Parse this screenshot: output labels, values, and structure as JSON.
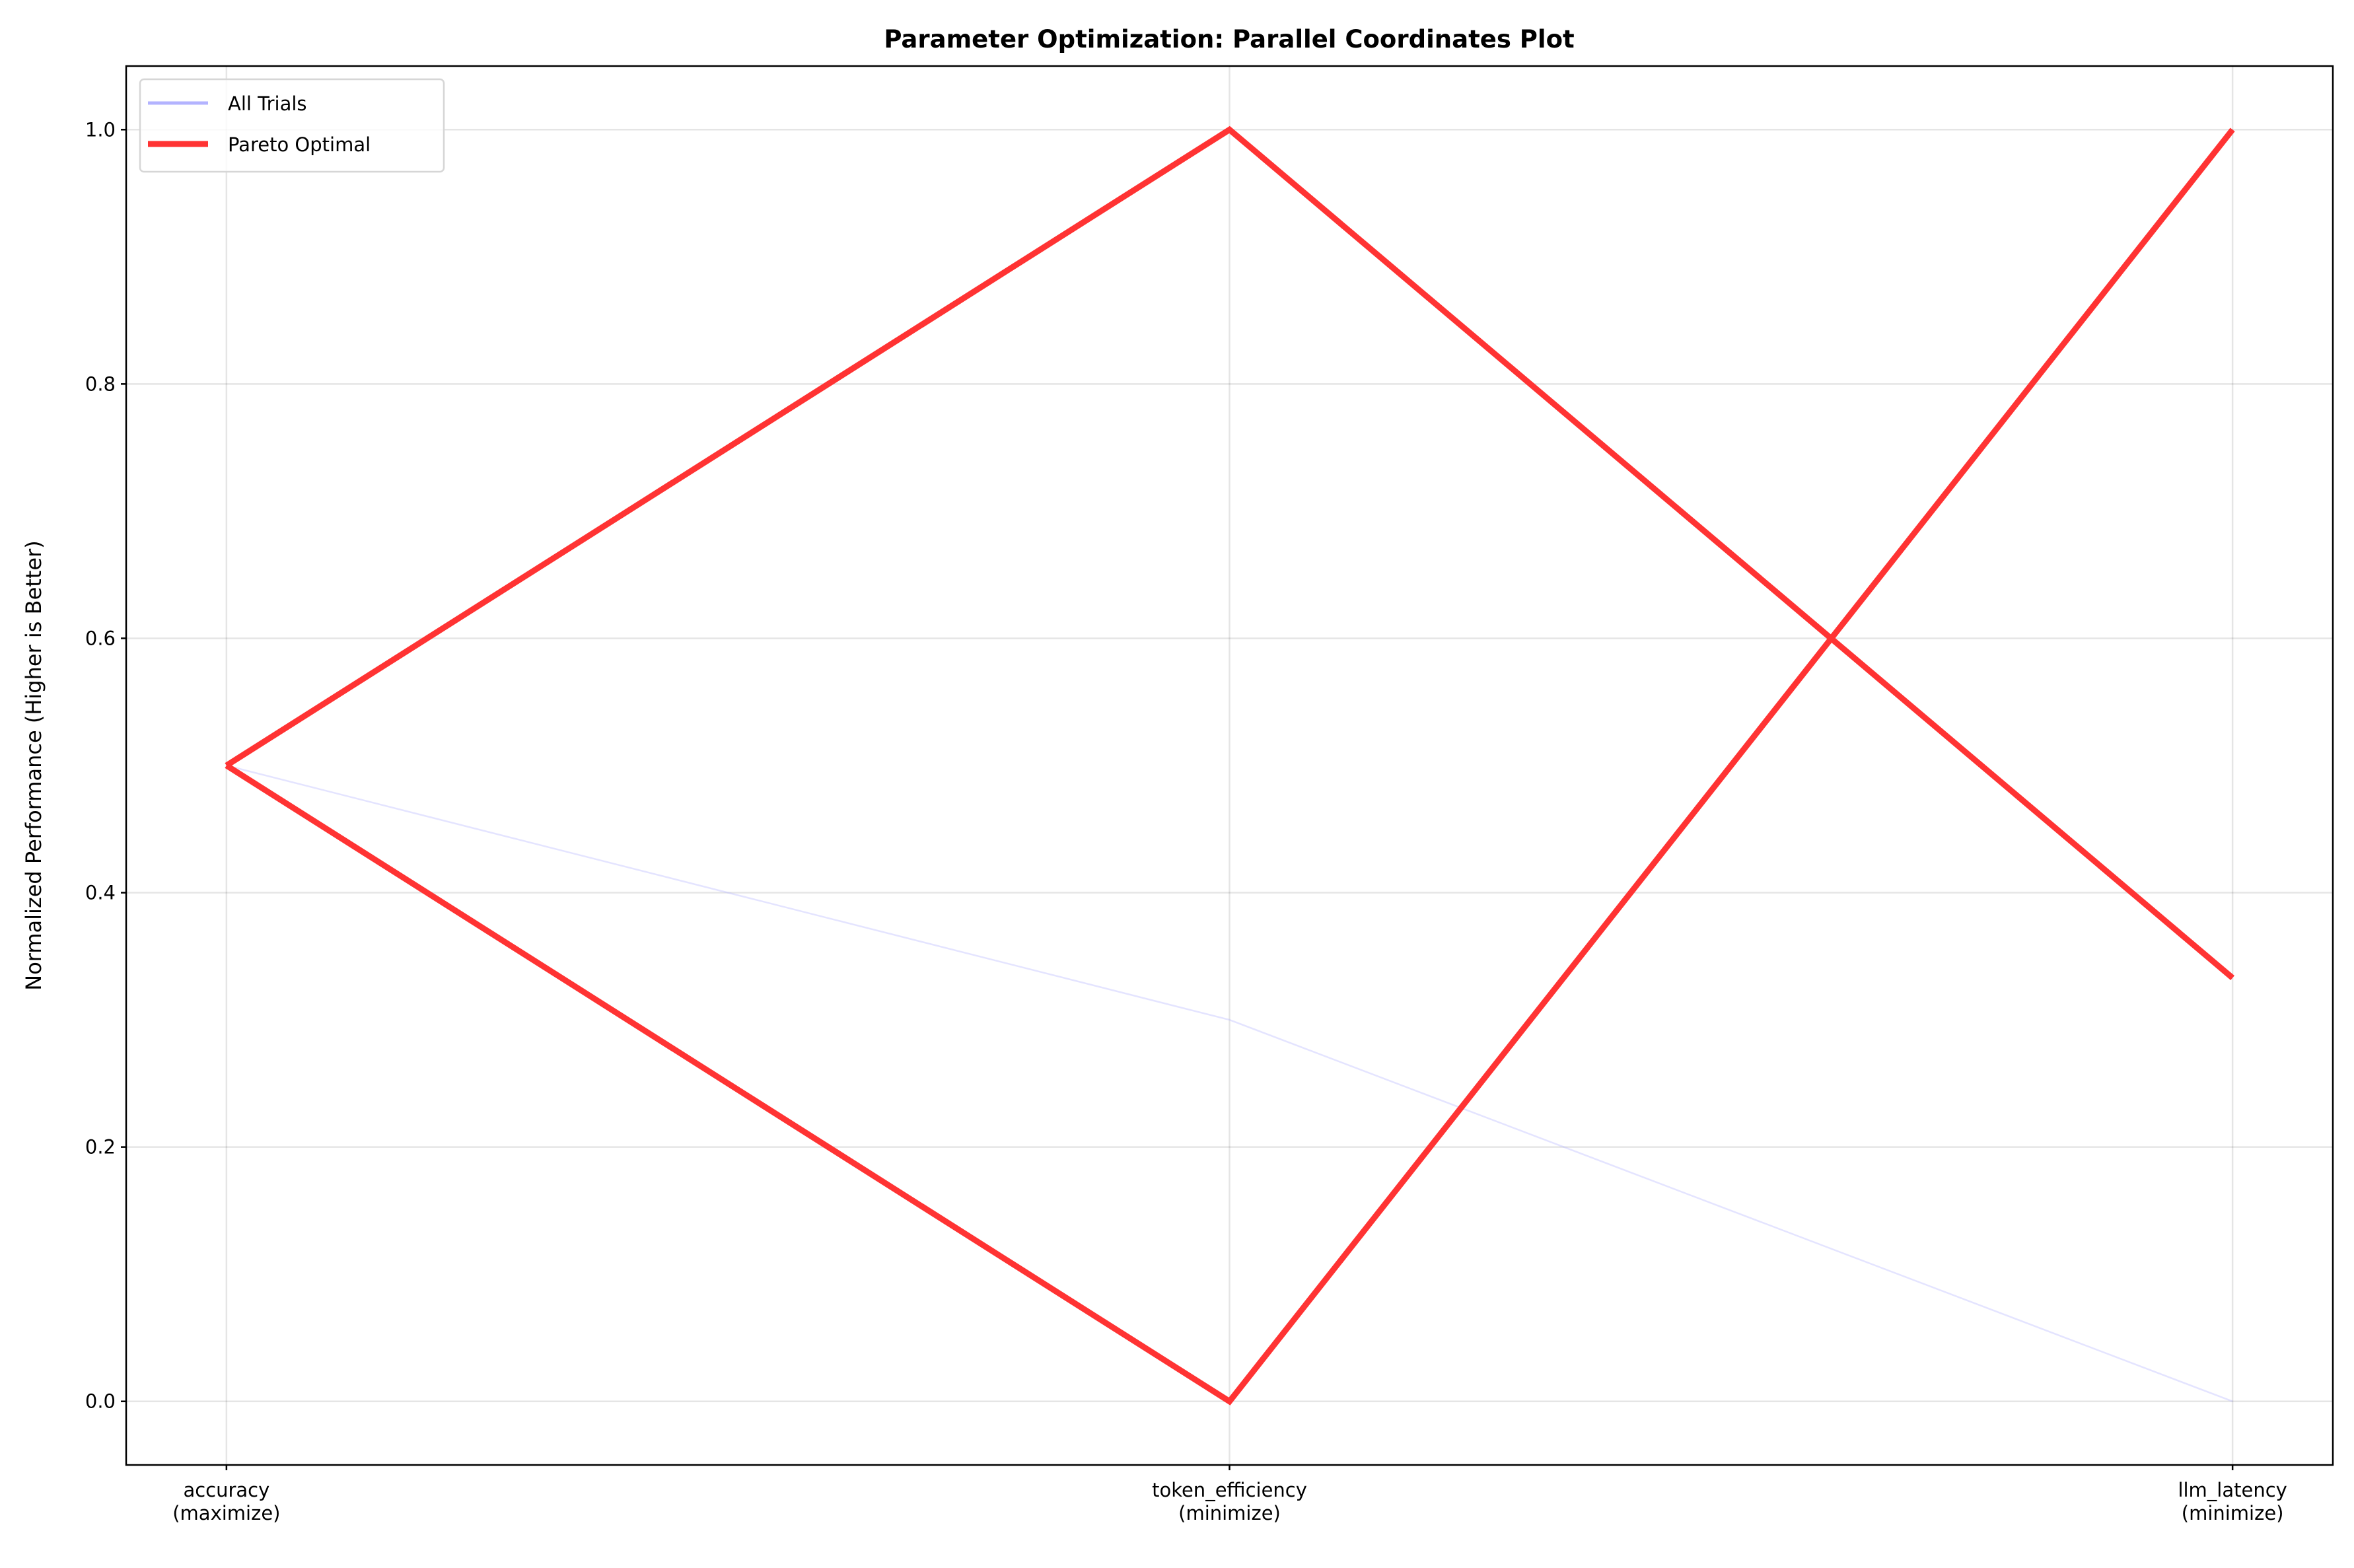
{
  "chart_data": {
    "type": "line",
    "subtype": "parallel-coordinates",
    "title": "Parameter Optimization: Parallel Coordinates Plot",
    "ylabel": "Normalized Performance (Higher is Better)",
    "xlabel": "",
    "categories": [
      [
        "accuracy",
        "(maximize)"
      ],
      [
        "token_efficiency",
        "(minimize)"
      ],
      [
        "llm_latency",
        "(minimize)"
      ]
    ],
    "ylim": [
      -0.05,
      1.05
    ],
    "yticks": [
      "0.0",
      "0.2",
      "0.4",
      "0.6",
      "0.8",
      "1.0"
    ],
    "grid": true,
    "legend": {
      "placement": "top-left",
      "entries": [
        "All Trials",
        "Pareto Optimal"
      ]
    },
    "series": [
      {
        "group": "All Trials",
        "color": "#b3b3ff",
        "values": [
          0.5,
          0.3,
          0.0
        ]
      },
      {
        "group": "Pareto Optimal",
        "color": "#ff3333",
        "values": [
          0.5,
          1.0,
          0.333
        ]
      },
      {
        "group": "Pareto Optimal",
        "color": "#ff3333",
        "values": [
          0.5,
          0.0,
          1.0
        ]
      }
    ]
  }
}
